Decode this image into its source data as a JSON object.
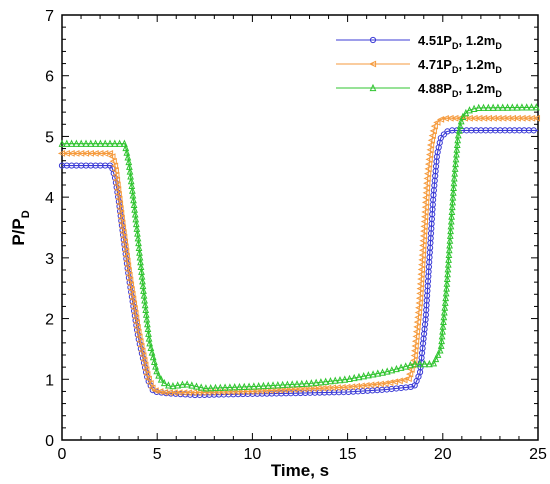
{
  "chart_data": {
    "type": "line",
    "title": "",
    "xlabel": "Time, s",
    "ylabel": "P/P",
    "ylabel_sub": "D",
    "xlim": [
      0,
      25
    ],
    "ylim": [
      0,
      7
    ],
    "xticks": [
      0,
      5,
      10,
      15,
      20,
      25
    ],
    "yticks": [
      0,
      1,
      2,
      3,
      4,
      5,
      6,
      7
    ],
    "grid": false,
    "legend_position": "top-right",
    "series": [
      {
        "name_main": "4.51P",
        "name_sub1": "D",
        "name_mid": ", 1.2m",
        "name_sub2": "D",
        "color": "#3b3bd6",
        "marker": "circle",
        "x": [
          0,
          2.6,
          2.8,
          3.0,
          3.2,
          3.5,
          4.0,
          4.5,
          4.8,
          5.5,
          7,
          10,
          12,
          15,
          17,
          18.5,
          18.8,
          19.1,
          19.3,
          19.5,
          19.7,
          19.9,
          20.2,
          20.5,
          21,
          25
        ],
        "y": [
          4.52,
          4.52,
          4.3,
          3.9,
          3.4,
          2.7,
          1.7,
          1.0,
          0.8,
          0.77,
          0.74,
          0.76,
          0.77,
          0.79,
          0.83,
          0.88,
          1.1,
          2.0,
          3.0,
          4.0,
          4.7,
          4.98,
          5.08,
          5.1,
          5.1,
          5.1
        ]
      },
      {
        "name_main": "4.71P",
        "name_sub1": "D",
        "name_mid": ", 1.2m",
        "name_sub2": "D",
        "color": "#f59a3c",
        "marker": "triangle-left",
        "x": [
          0,
          2.6,
          2.8,
          3.0,
          3.2,
          3.5,
          4.0,
          4.5,
          4.8,
          5.5,
          7,
          10,
          12,
          15,
          17,
          18.2,
          18.5,
          18.8,
          19.0,
          19.2,
          19.4,
          19.6,
          19.9,
          20.2,
          21,
          25
        ],
        "y": [
          4.72,
          4.72,
          4.5,
          4.0,
          3.5,
          2.8,
          1.8,
          1.05,
          0.82,
          0.78,
          0.78,
          0.8,
          0.83,
          0.87,
          0.93,
          1.0,
          1.3,
          2.3,
          3.3,
          4.3,
          4.9,
          5.2,
          5.28,
          5.3,
          5.3,
          5.3
        ]
      },
      {
        "name_main": "4.88P",
        "name_sub1": "D",
        "name_mid": ", 1.2m",
        "name_sub2": "D",
        "color": "#2fc42f",
        "marker": "triangle-up",
        "x": [
          0,
          3.3,
          3.5,
          3.7,
          4.0,
          4.3,
          4.6,
          5.0,
          5.3,
          5.7,
          6.5,
          7.5,
          10,
          13,
          15,
          17,
          18.5,
          19.5,
          19.9,
          20.2,
          20.4,
          20.6,
          20.8,
          21.0,
          21.3,
          21.8,
          25
        ],
        "y": [
          4.88,
          4.88,
          4.6,
          4.1,
          3.3,
          2.4,
          1.6,
          1.1,
          0.95,
          0.88,
          0.92,
          0.85,
          0.88,
          0.93,
          1.0,
          1.12,
          1.25,
          1.25,
          1.5,
          2.5,
          3.4,
          4.3,
          5.0,
          5.3,
          5.42,
          5.47,
          5.48
        ]
      }
    ]
  }
}
